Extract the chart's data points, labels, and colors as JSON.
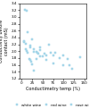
{
  "title": "",
  "xlabel": "Conductimetry temp (%)",
  "ylabel": "Conductivity before\ncontact (mS)",
  "xlim": [
    -5,
    155
  ],
  "ylim": [
    1.2,
    3.4
  ],
  "xticks": [
    0,
    25,
    50,
    75,
    100,
    125,
    150
  ],
  "yticks": [
    1.2,
    1.4,
    1.6,
    1.8,
    2.0,
    2.2,
    2.4,
    2.6,
    2.8,
    3.0,
    3.2,
    3.4
  ],
  "marker_color": "#b8e0f0",
  "marker_edge": "#88c8e0",
  "white_wine": [
    [
      5,
      2.28
    ],
    [
      10,
      2.05
    ],
    [
      12,
      2.0
    ],
    [
      15,
      1.95
    ],
    [
      18,
      1.78
    ],
    [
      20,
      1.75
    ],
    [
      22,
      1.68
    ],
    [
      25,
      1.62
    ],
    [
      30,
      1.42
    ],
    [
      35,
      1.78
    ],
    [
      40,
      1.92
    ],
    [
      45,
      1.85
    ]
  ],
  "red_wine": [
    [
      8,
      3.22
    ],
    [
      12,
      3.18
    ],
    [
      15,
      2.55
    ],
    [
      20,
      2.12
    ],
    [
      25,
      2.35
    ],
    [
      30,
      2.05
    ],
    [
      35,
      1.98
    ],
    [
      38,
      1.95
    ],
    [
      45,
      2.1
    ],
    [
      50,
      1.85
    ],
    [
      55,
      1.92
    ],
    [
      60,
      1.88
    ],
    [
      65,
      2.18
    ],
    [
      70,
      1.95
    ],
    [
      75,
      1.88
    ],
    [
      80,
      1.95
    ],
    [
      90,
      1.8
    ],
    [
      100,
      1.88
    ],
    [
      110,
      1.78
    ],
    [
      115,
      1.58
    ],
    [
      120,
      1.48
    ],
    [
      140,
      1.82
    ]
  ],
  "rose_wine": [
    [
      5,
      2.3
    ],
    [
      10,
      2.22
    ],
    [
      20,
      2.15
    ],
    [
      30,
      1.98
    ],
    [
      45,
      2.02
    ],
    [
      60,
      1.75
    ],
    [
      75,
      1.65
    ],
    [
      100,
      1.58
    ]
  ],
  "legend_labels": [
    "white wine",
    "red wine",
    "rosé wine"
  ],
  "fontsize": 3.5,
  "tick_fontsize": 3.0,
  "figsize": [
    1.0,
    1.22
  ],
  "dpi": 100,
  "marker_size": 2.0
}
